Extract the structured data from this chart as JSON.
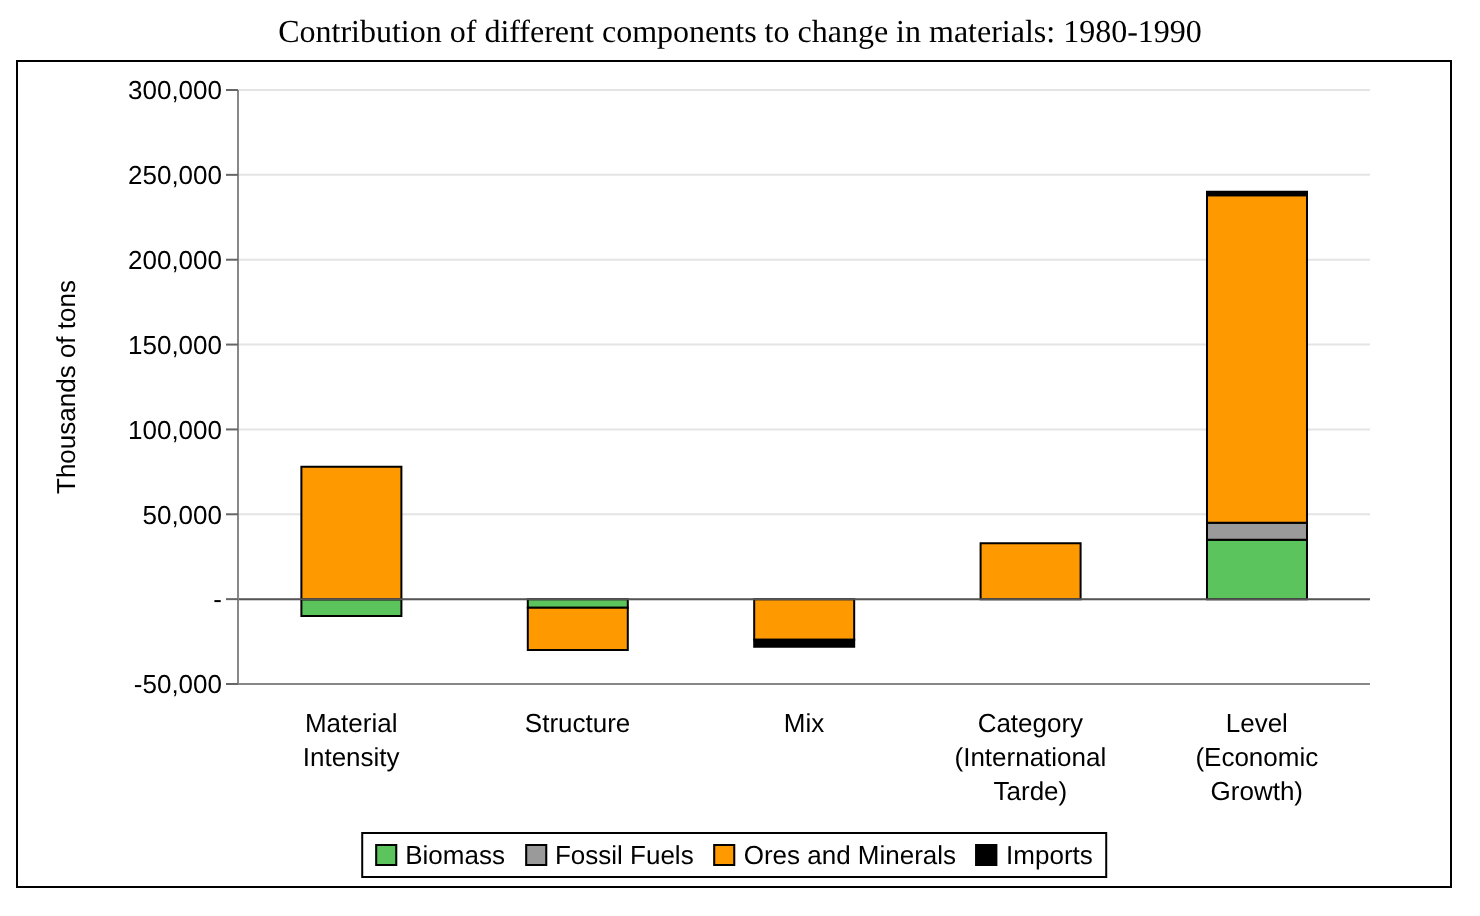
{
  "chart_data": {
    "type": "bar",
    "title": "Contribution of different components to change in materials: 1980-1990",
    "ylabel": "Thousands of tons",
    "categories": [
      "Material Intensity",
      "Structure",
      "Mix",
      "Category (International Tarde)",
      "Level (Economic Growth)"
    ],
    "series": [
      {
        "name": "Biomass",
        "color": "#5cc45c",
        "values": [
          -10000,
          -5000,
          0,
          0,
          35000
        ]
      },
      {
        "name": "Fossil Fuels",
        "color": "#9a9a9a",
        "values": [
          null,
          0,
          0,
          0,
          10000
        ]
      },
      {
        "name": "Ores and Minerals",
        "color": "#ff9900",
        "values": [
          78000,
          -25000,
          -24000,
          33000,
          193000
        ]
      },
      {
        "name": "Imports",
        "color": "#000000",
        "values": [
          0,
          0,
          -4000,
          0,
          2000
        ]
      }
    ],
    "stacked": true,
    "ylim": [
      -50000,
      300000
    ],
    "yticks": [
      {
        "value": -50000,
        "label": "-50,000"
      },
      {
        "value": 0,
        "label": "-"
      },
      {
        "value": 50000,
        "label": "50,000"
      },
      {
        "value": 100000,
        "label": "100,000"
      },
      {
        "value": 150000,
        "label": "150,000"
      },
      {
        "value": 200000,
        "label": "200,000"
      },
      {
        "value": 250000,
        "label": "250,000"
      },
      {
        "value": 300000,
        "label": "300,000"
      }
    ],
    "grid": "y",
    "legend": "bottom"
  }
}
